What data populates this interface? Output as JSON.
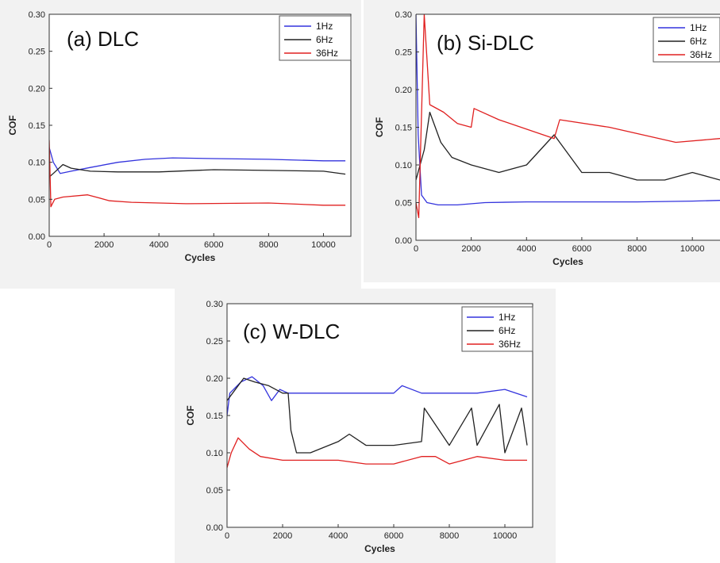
{
  "colors": {
    "1Hz": "#3333dd",
    "6Hz": "#222222",
    "36Hz": "#e02020"
  },
  "chart_data": [
    {
      "type": "line",
      "title": "(a) DLC",
      "xlabel": "Cycles",
      "ylabel": "COF",
      "xlim": [
        0,
        11000
      ],
      "ylim": [
        0.0,
        0.3
      ],
      "xticks": [
        "0",
        "2000",
        "4000",
        "6000",
        "8000",
        "10000"
      ],
      "yticks": [
        "0.00",
        "0.05",
        "0.10",
        "0.15",
        "0.20",
        "0.25",
        "0.30"
      ],
      "legend_position": "top-right",
      "series": [
        {
          "name": "1Hz",
          "x": [
            0,
            150,
            400,
            800,
            1500,
            2500,
            3500,
            4500,
            6000,
            8000,
            10000,
            10800
          ],
          "y": [
            0.12,
            0.1,
            0.085,
            0.088,
            0.093,
            0.1,
            0.104,
            0.106,
            0.105,
            0.104,
            0.102,
            0.102
          ]
        },
        {
          "name": "6Hz",
          "x": [
            0,
            150,
            500,
            800,
            1500,
            2500,
            4000,
            6000,
            8000,
            10000,
            10800
          ],
          "y": [
            0.08,
            0.085,
            0.097,
            0.092,
            0.088,
            0.087,
            0.087,
            0.09,
            0.089,
            0.088,
            0.084
          ]
        },
        {
          "name": "36Hz",
          "x": [
            0,
            60,
            200,
            500,
            1400,
            2200,
            3000,
            5000,
            8000,
            10000,
            10800
          ],
          "y": [
            0.13,
            0.04,
            0.05,
            0.053,
            0.056,
            0.048,
            0.046,
            0.044,
            0.045,
            0.042,
            0.042
          ]
        }
      ]
    },
    {
      "type": "line",
      "title": "(b) Si-DLC",
      "xlabel": "Cycles",
      "ylabel": "COF",
      "xlim": [
        0,
        11000
      ],
      "ylim": [
        0.0,
        0.3
      ],
      "xticks": [
        "0",
        "2000",
        "4000",
        "6000",
        "8000",
        "10000"
      ],
      "yticks": [
        "0.00",
        "0.05",
        "0.10",
        "0.15",
        "0.20",
        "0.25",
        "0.30"
      ],
      "legend_position": "top-right",
      "series": [
        {
          "name": "1Hz",
          "x": [
            0,
            80,
            200,
            400,
            800,
            1500,
            2500,
            4000,
            6000,
            8000,
            10000,
            11000
          ],
          "y": [
            0.3,
            0.14,
            0.06,
            0.05,
            0.047,
            0.047,
            0.05,
            0.051,
            0.051,
            0.051,
            0.052,
            0.053
          ]
        },
        {
          "name": "6Hz",
          "x": [
            0,
            300,
            500,
            900,
            1300,
            2000,
            3000,
            4000,
            5000,
            6000,
            7000,
            8000,
            9000,
            10000,
            11000
          ],
          "y": [
            0.08,
            0.12,
            0.17,
            0.13,
            0.11,
            0.1,
            0.09,
            0.1,
            0.14,
            0.09,
            0.09,
            0.08,
            0.08,
            0.09,
            0.08
          ]
        },
        {
          "name": "36Hz",
          "x": [
            0,
            100,
            300,
            500,
            1000,
            1500,
            2000,
            2100,
            3000,
            5000,
            5200,
            7000,
            9400,
            11000
          ],
          "y": [
            0.05,
            0.03,
            0.3,
            0.18,
            0.17,
            0.155,
            0.15,
            0.175,
            0.16,
            0.135,
            0.16,
            0.15,
            0.13,
            0.135
          ]
        }
      ]
    },
    {
      "type": "line",
      "title": "(c) W-DLC",
      "xlabel": "Cycles",
      "ylabel": "COF",
      "xlim": [
        0,
        11000
      ],
      "ylim": [
        0.0,
        0.3
      ],
      "xticks": [
        "0",
        "2000",
        "4000",
        "6000",
        "8000",
        "10000"
      ],
      "yticks": [
        "0.00",
        "0.05",
        "0.10",
        "0.15",
        "0.20",
        "0.25",
        "0.30"
      ],
      "legend_position": "top-right",
      "series": [
        {
          "name": "1Hz",
          "x": [
            0,
            100,
            500,
            900,
            1300,
            1600,
            1900,
            2200,
            3000,
            4000,
            5000,
            6000,
            6300,
            7000,
            8000,
            9000,
            10000,
            10800
          ],
          "y": [
            0.15,
            0.18,
            0.195,
            0.202,
            0.19,
            0.17,
            0.185,
            0.18,
            0.18,
            0.18,
            0.18,
            0.18,
            0.19,
            0.18,
            0.18,
            0.18,
            0.185,
            0.175
          ]
        },
        {
          "name": "6Hz",
          "x": [
            0,
            200,
            600,
            1000,
            1500,
            2000,
            2200,
            2300,
            2500,
            3000,
            4000,
            4400,
            5000,
            6000,
            7000,
            7100,
            8000,
            8800,
            9000,
            9800,
            10000,
            10600,
            10800
          ],
          "y": [
            0.17,
            0.18,
            0.2,
            0.195,
            0.19,
            0.18,
            0.18,
            0.13,
            0.1,
            0.1,
            0.115,
            0.125,
            0.11,
            0.11,
            0.115,
            0.16,
            0.11,
            0.16,
            0.11,
            0.165,
            0.1,
            0.16,
            0.11
          ]
        },
        {
          "name": "36Hz",
          "x": [
            0,
            150,
            400,
            800,
            1200,
            2000,
            3000,
            4000,
            5000,
            6000,
            7000,
            7500,
            8000,
            9000,
            10000,
            10800
          ],
          "y": [
            0.08,
            0.1,
            0.12,
            0.105,
            0.095,
            0.09,
            0.09,
            0.09,
            0.085,
            0.085,
            0.095,
            0.095,
            0.085,
            0.095,
            0.09,
            0.09
          ]
        }
      ]
    }
  ]
}
